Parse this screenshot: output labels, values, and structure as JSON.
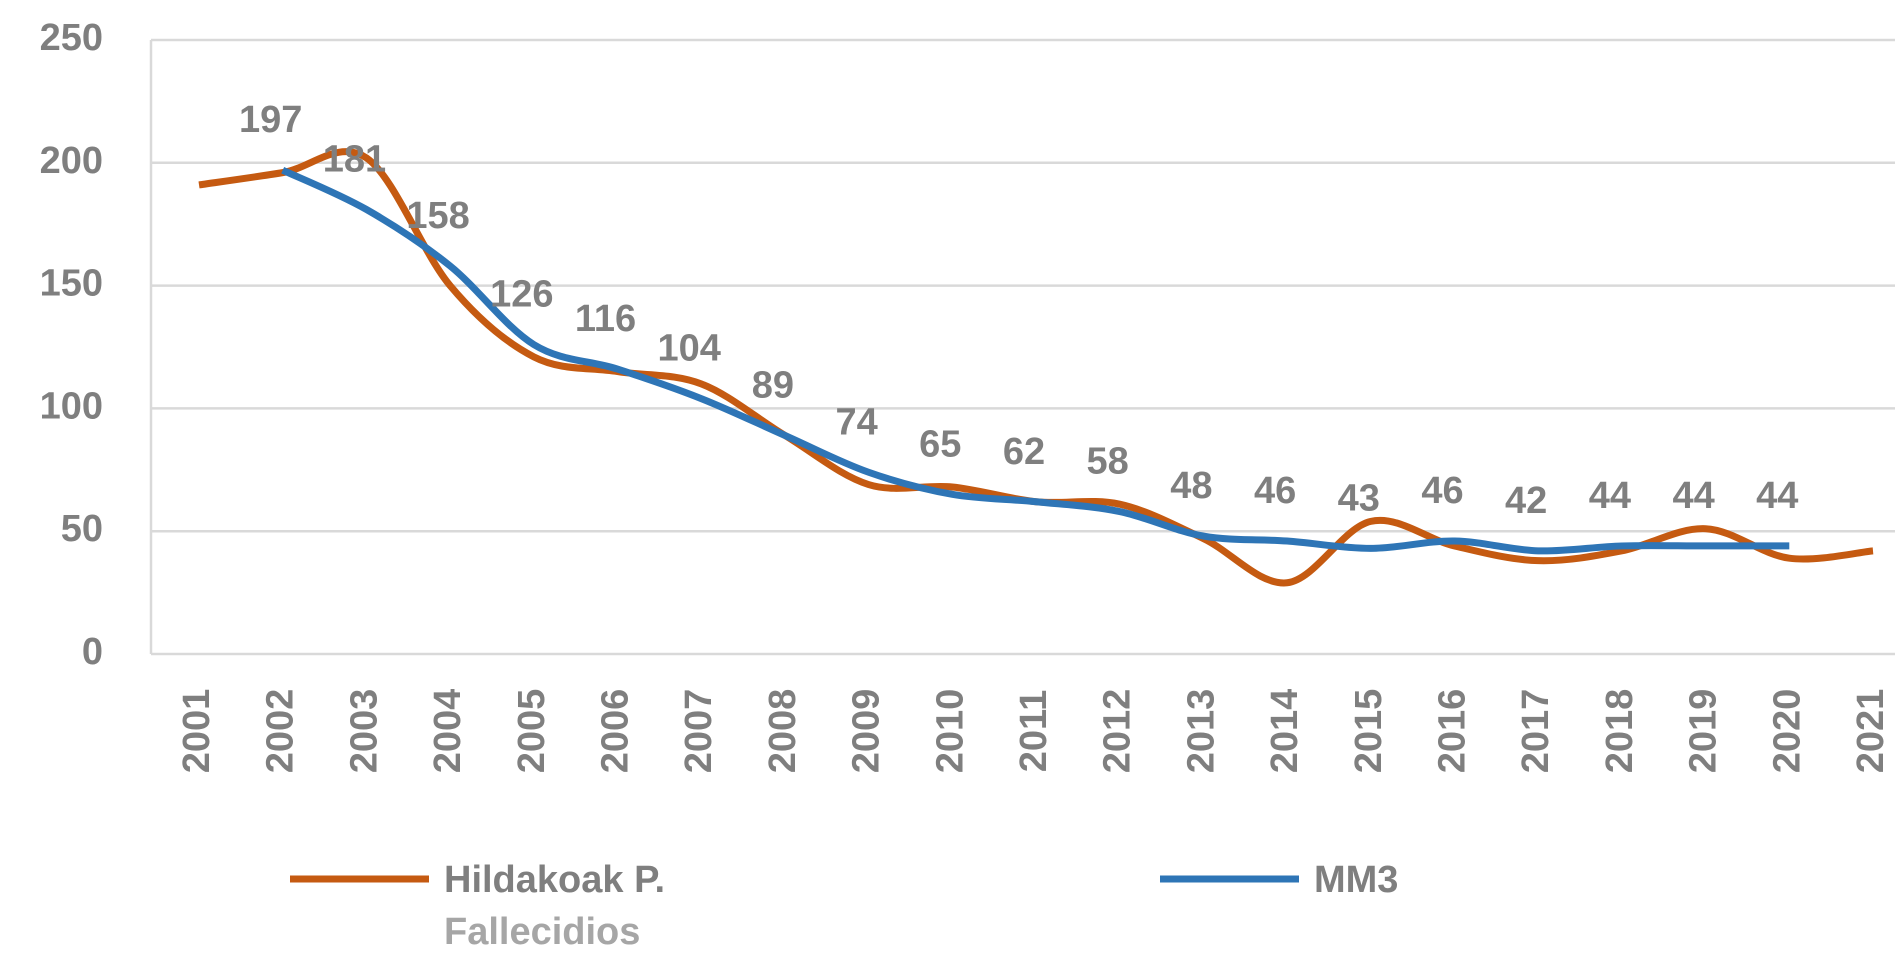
{
  "chart_data": {
    "type": "line",
    "categories": [
      "2001",
      "2002",
      "2003",
      "2004",
      "2005",
      "2006",
      "2007",
      "2008",
      "2009",
      "2010",
      "2011",
      "2012",
      "2013",
      "2014",
      "2015",
      "2016",
      "2017",
      "2018",
      "2019",
      "2020",
      "2021"
    ],
    "series": [
      {
        "name": "Hildakoak P.",
        "legend_subtitle": "Fallecidios",
        "color": "#c55a11",
        "values": [
          191,
          196,
          202,
          150,
          121,
          115,
          110,
          89,
          69,
          68,
          62,
          61,
          47,
          29,
          54,
          44,
          38,
          42,
          51,
          39,
          42
        ]
      },
      {
        "name": "MM3",
        "color": "#2e75b6",
        "values": [
          null,
          197,
          181,
          158,
          126,
          116,
          104,
          89,
          74,
          65,
          62,
          58,
          48,
          46,
          43,
          46,
          42,
          44,
          44,
          44,
          null
        ],
        "data_labels": true
      }
    ],
    "ylim": [
      0,
      250
    ],
    "yticks": [
      0,
      50,
      100,
      150,
      200,
      250
    ],
    "grid": true
  }
}
